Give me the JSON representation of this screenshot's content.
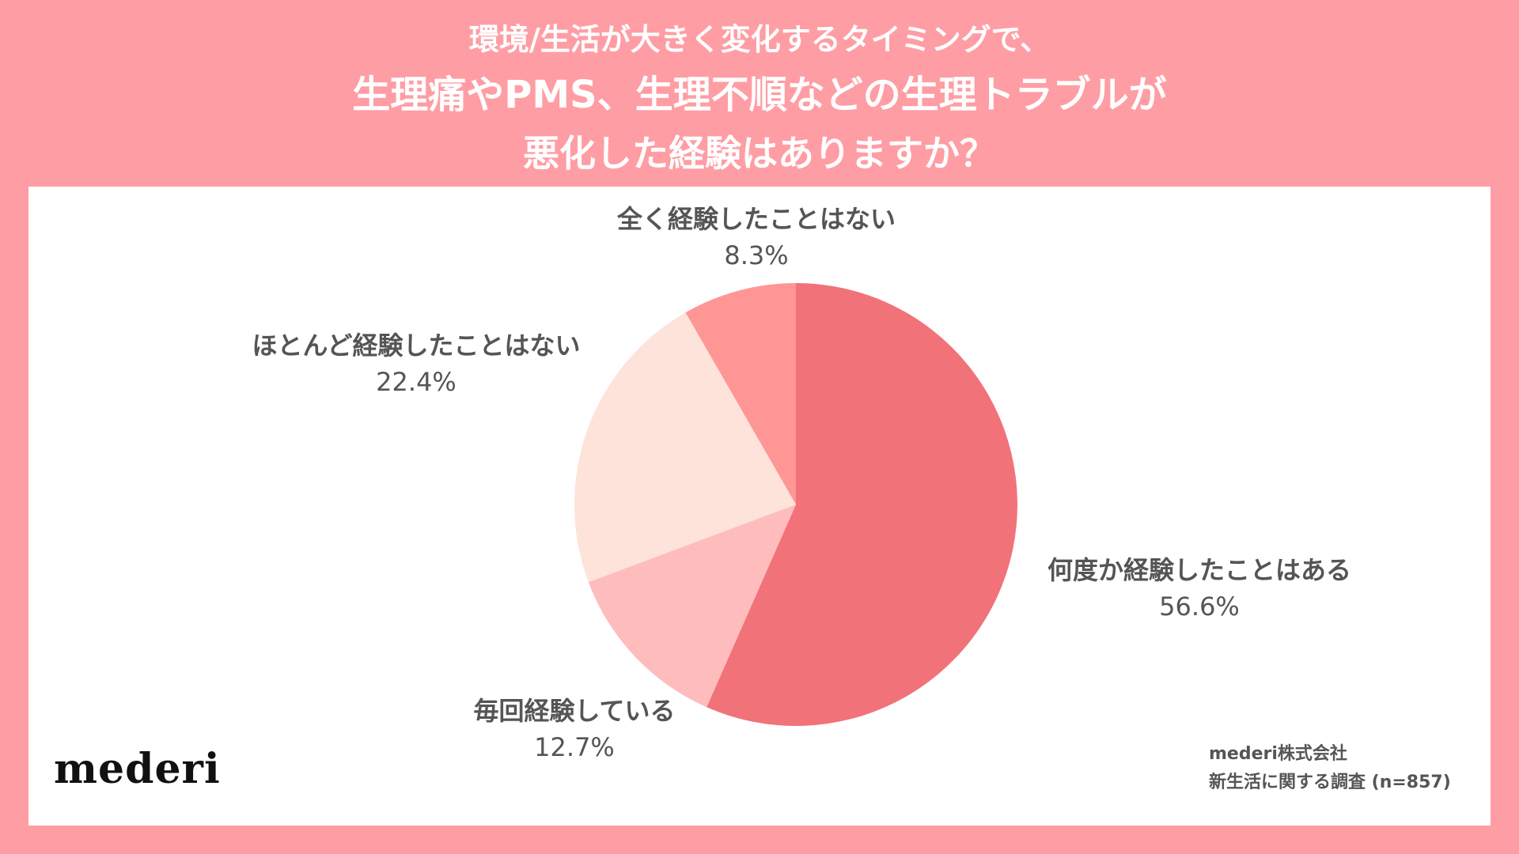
{
  "title_lines": [
    "環境/生活が大きく変化するタイミングで、",
    "生理痛やPMS、生理不順などの生理トラブルが",
    "悪化した経験はありますか？"
  ],
  "chart_data": {
    "type": "pie",
    "title": "環境/生活が大きく変化するタイミングで、生理痛やPMS、生理不順などの生理トラブルが悪化した経験はありますか？",
    "slices": [
      {
        "label": "何度か経験したことはある",
        "value": 56.6,
        "value_label": "56.6%",
        "color": "#f2727a"
      },
      {
        "label": "毎回経験している",
        "value": 12.7,
        "value_label": "12.7%",
        "color": "#ffbcbc"
      },
      {
        "label": "ほとんど経験したことはない",
        "value": 22.4,
        "value_label": "22.4%",
        "color": "#fde3da"
      },
      {
        "label": "全く経験したことはない",
        "value": 8.3,
        "value_label": "8.3%",
        "color": "#ff9696"
      }
    ],
    "start": "12 o'clock",
    "direction": "clockwise"
  },
  "logo": "mederi",
  "source": {
    "line1": "mederi株式会社",
    "line2": "新生活に関する調査 (n=857)"
  }
}
